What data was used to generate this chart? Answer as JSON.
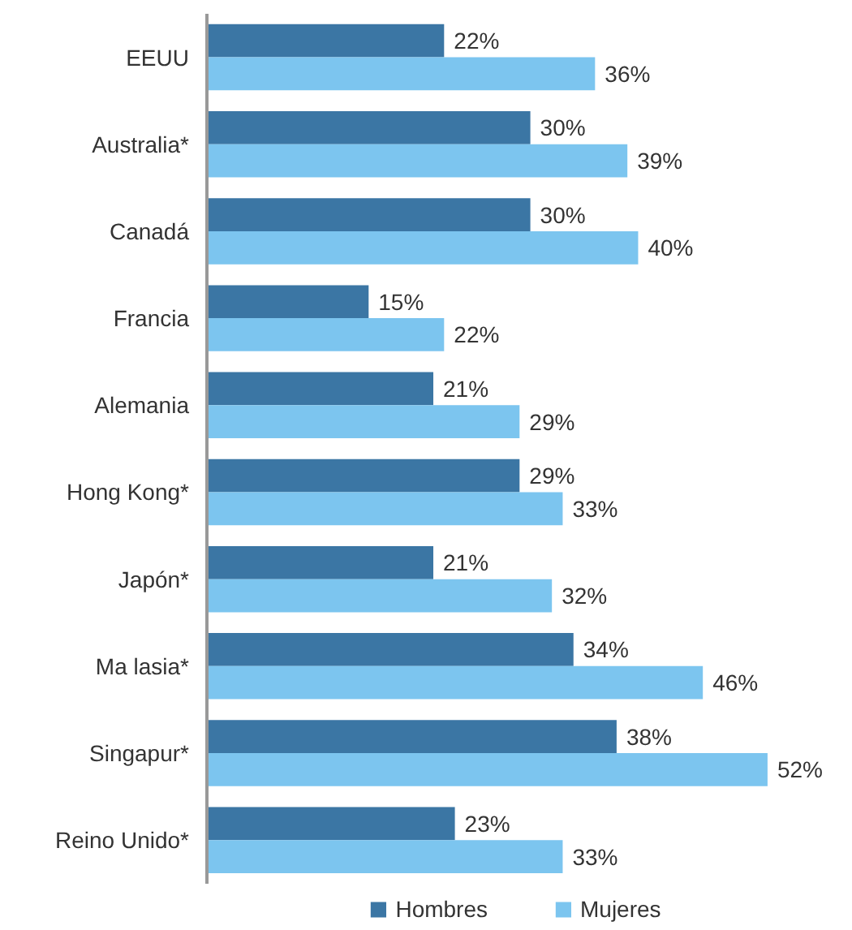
{
  "chart_data": {
    "type": "bar",
    "orientation": "horizontal",
    "categories": [
      "EEUU",
      "Australia*",
      "Canadá",
      "Francia",
      "Alemania",
      "Hong Kong*",
      "Japón*",
      "Ma lasia*",
      "Singapur*",
      "Reino Unido*"
    ],
    "series": [
      {
        "name": "Hombres",
        "color": "#3b76a4",
        "values": [
          22,
          30,
          30,
          15,
          21,
          29,
          21,
          34,
          38,
          23
        ],
        "value_labels": [
          "22%",
          "30%",
          "30%",
          "15%",
          "21%",
          "29%",
          "21%",
          "34%",
          "38%",
          "23%"
        ]
      },
      {
        "name": "Mujeres",
        "color": "#7cc5ef",
        "values": [
          36,
          39,
          40,
          22,
          29,
          33,
          32,
          46,
          52,
          33
        ],
        "value_labels": [
          "36%",
          "39%",
          "40%",
          "22%",
          "29%",
          "33%",
          "32%",
          "46%",
          "52%",
          "33%"
        ]
      }
    ],
    "legend": "bottom",
    "grid": false
  }
}
